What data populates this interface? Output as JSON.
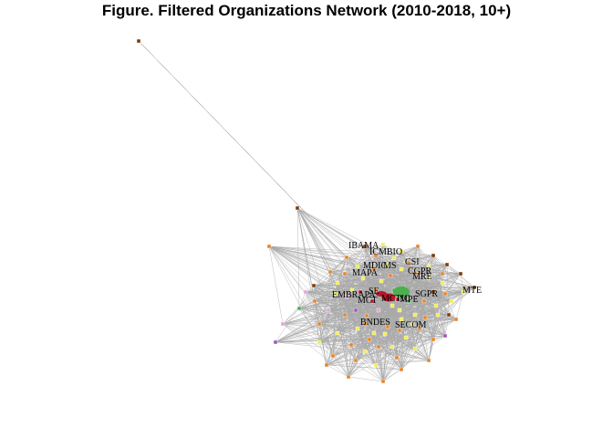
{
  "title": "Figure. Filtered Organizations Network (2010-2018, 10+)",
  "colors": {
    "edge": "#a9a9a9",
    "node_stroke": "#444444",
    "palette": [
      "#7f3b08",
      "#e6842a",
      "#f2ef4b",
      "#e9a0d8",
      "#9b59b6",
      "#4caf50",
      "#b2182b",
      "#8b4513"
    ]
  },
  "network": {
    "labels": [
      "IBAMA",
      "ICMBIO",
      "MDIC",
      "MS",
      "MAPA",
      "CSI",
      "CGPR",
      "MRE",
      "MCT",
      "EMBRAPA",
      "SE",
      "MCTIC",
      "SGPR",
      "MPE",
      "MTE",
      "BNDES",
      "SECOM"
    ]
  }
}
